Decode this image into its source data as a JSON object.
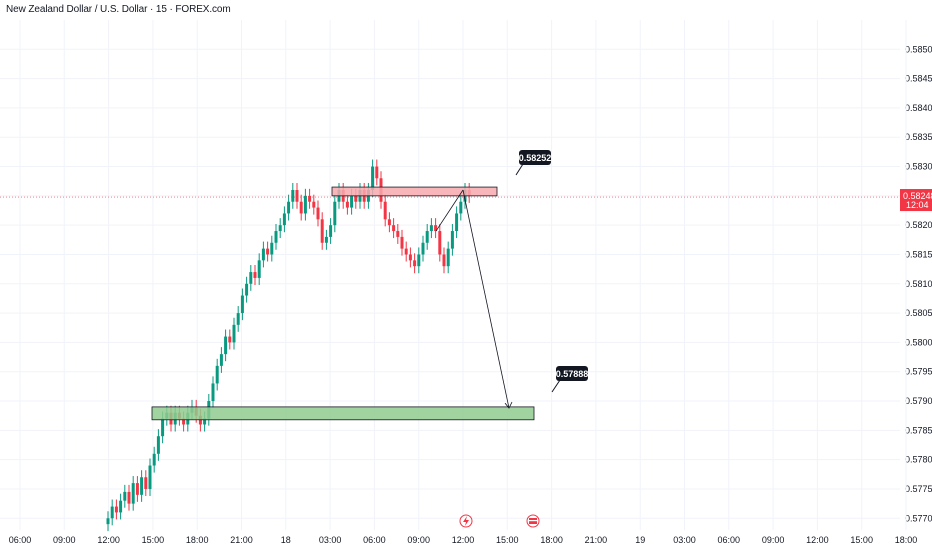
{
  "header": {
    "title": "New Zealand Dollar / U.S. Dollar · 15 · FOREX.com"
  },
  "current_price": {
    "value": "0.58248",
    "timer": "12:04",
    "color": "#f23645"
  },
  "colors": {
    "up": "#089981",
    "down": "#f23645",
    "resistance": "#f7a9ae",
    "support": "#8fcb8e",
    "grid": "#f0f3fa"
  },
  "icons": [
    "lightning-icon",
    "us-flag-icon"
  ],
  "chart_data": {
    "type": "candlestick",
    "title": "New Zealand Dollar / U.S. Dollar · 15 · FOREX.com",
    "ylim": [
      0.5768,
      0.5855
    ],
    "y_ticks": [
      "0.58500",
      "0.58450",
      "0.58400",
      "0.58350",
      "0.58300",
      "0.58250",
      "0.58200",
      "0.58150",
      "0.58100",
      "0.58050",
      "0.58000",
      "0.57950",
      "0.57900",
      "0.57850",
      "0.57800",
      "0.57750",
      "0.57700"
    ],
    "x_ticks": [
      "06:00",
      "09:00",
      "12:00",
      "15:00",
      "18:00",
      "21:00",
      "18",
      "03:00",
      "06:00",
      "09:00",
      "12:00",
      "15:00",
      "18:00",
      "21:00",
      "19",
      "03:00",
      "06:00",
      "09:00",
      "12:00",
      "15:00",
      "18:00"
    ],
    "closes": [
      0.577,
      0.5772,
      0.5771,
      0.5773,
      0.57745,
      0.57725,
      0.5776,
      0.5774,
      0.5777,
      0.5775,
      0.5779,
      0.5781,
      0.5784,
      0.5787,
      0.5788,
      0.5786,
      0.5788,
      0.5787,
      0.5786,
      0.5788,
      0.5789,
      0.57875,
      0.5786,
      0.5787,
      0.579,
      0.5793,
      0.5796,
      0.5798,
      0.5801,
      0.58,
      0.5803,
      0.5805,
      0.5808,
      0.581,
      0.5812,
      0.5811,
      0.5814,
      0.5816,
      0.5815,
      0.5817,
      0.5819,
      0.582,
      0.5822,
      0.5824,
      0.5826,
      0.5824,
      0.5822,
      0.5825,
      0.5824,
      0.5823,
      0.5821,
      0.5817,
      0.5818,
      0.582,
      0.5824,
      0.5826,
      0.5824,
      0.5823,
      0.5825,
      0.5824,
      0.5826,
      0.5824,
      0.5826,
      0.583,
      0.5828,
      0.5824,
      0.5821,
      0.582,
      0.5819,
      0.5818,
      0.5816,
      0.5815,
      0.5814,
      0.5813,
      0.5815,
      0.5817,
      0.5819,
      0.582,
      0.5819,
      0.5815,
      0.5813,
      0.5816,
      0.5819,
      0.5822,
      0.5824,
      0.5826,
      0.5825
    ],
    "zones": [
      {
        "type": "resistance",
        "y_top": 0.58265,
        "y_bottom": 0.5825,
        "label": "0.58252"
      },
      {
        "type": "support",
        "y_top": 0.5789,
        "y_bottom": 0.57868,
        "label": "0.57888"
      }
    ],
    "projection": {
      "from": 0.5826,
      "to": 0.57888
    }
  }
}
